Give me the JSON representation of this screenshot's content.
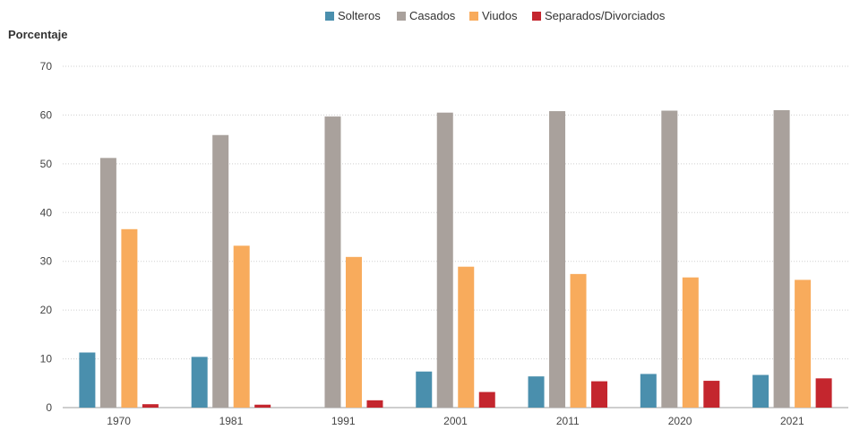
{
  "chart_data": {
    "type": "bar",
    "ylabel": "Porcentaje",
    "xlabel": "",
    "ylim": [
      0,
      70
    ],
    "yticks": [
      0,
      10,
      20,
      30,
      40,
      50,
      60,
      70
    ],
    "grid": true,
    "legend_position": "top",
    "categories": [
      "1970",
      "1981",
      "1991",
      "2001",
      "2011",
      "2020",
      "2021"
    ],
    "series": [
      {
        "name": "Solteros",
        "color": "#4a8fad",
        "values": [
          11.3,
          10.4,
          0,
          7.4,
          6.4,
          6.9,
          6.7
        ]
      },
      {
        "name": "Casados",
        "color": "#a9a19c",
        "values": [
          51.2,
          55.9,
          59.7,
          60.5,
          60.8,
          60.9,
          61.0
        ]
      },
      {
        "name": "Viudos",
        "color": "#f8ab5c",
        "values": [
          36.6,
          33.2,
          30.9,
          28.9,
          27.4,
          26.7,
          26.2
        ]
      },
      {
        "name": "Separados/Divorciados",
        "color": "#c4262e",
        "values": [
          0.7,
          0.6,
          1.5,
          3.2,
          5.4,
          5.5,
          6.0
        ]
      }
    ]
  }
}
